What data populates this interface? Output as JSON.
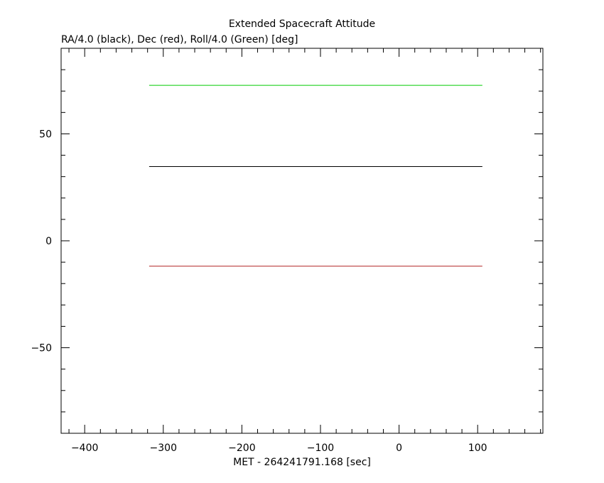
{
  "chart_data": {
    "type": "line",
    "title": "Extended Spacecraft Attitude",
    "subtitle": "RA/4.0 (black), Dec (red), Roll/4.0 (Green) [deg]",
    "xlabel": "MET - 264241791.168 [sec]",
    "ylabel": "",
    "xlim": [
      -430,
      183
    ],
    "ylim": [
      -90,
      90
    ],
    "xticks": [
      -400,
      -300,
      -200,
      -100,
      0,
      100
    ],
    "xtick_labels": [
      "−400",
      "−300",
      "−200",
      "−100",
      "0",
      "100"
    ],
    "yticks": [
      -50,
      0,
      50
    ],
    "ytick_labels": [
      "−50",
      "0",
      "50"
    ],
    "x_minor_step": 20,
    "y_minor_step": 10,
    "grid": false,
    "series": [
      {
        "color": "#00cc00",
        "x": [
          -318,
          106
        ],
        "y": [
          72.7,
          72.7
        ]
      },
      {
        "color": "#000000",
        "x": [
          -318,
          106
        ],
        "y": [
          34.7,
          34.7
        ]
      },
      {
        "color": "#b22222",
        "x": [
          -318,
          106
        ],
        "y": [
          -11.9,
          -11.9
        ]
      }
    ]
  }
}
